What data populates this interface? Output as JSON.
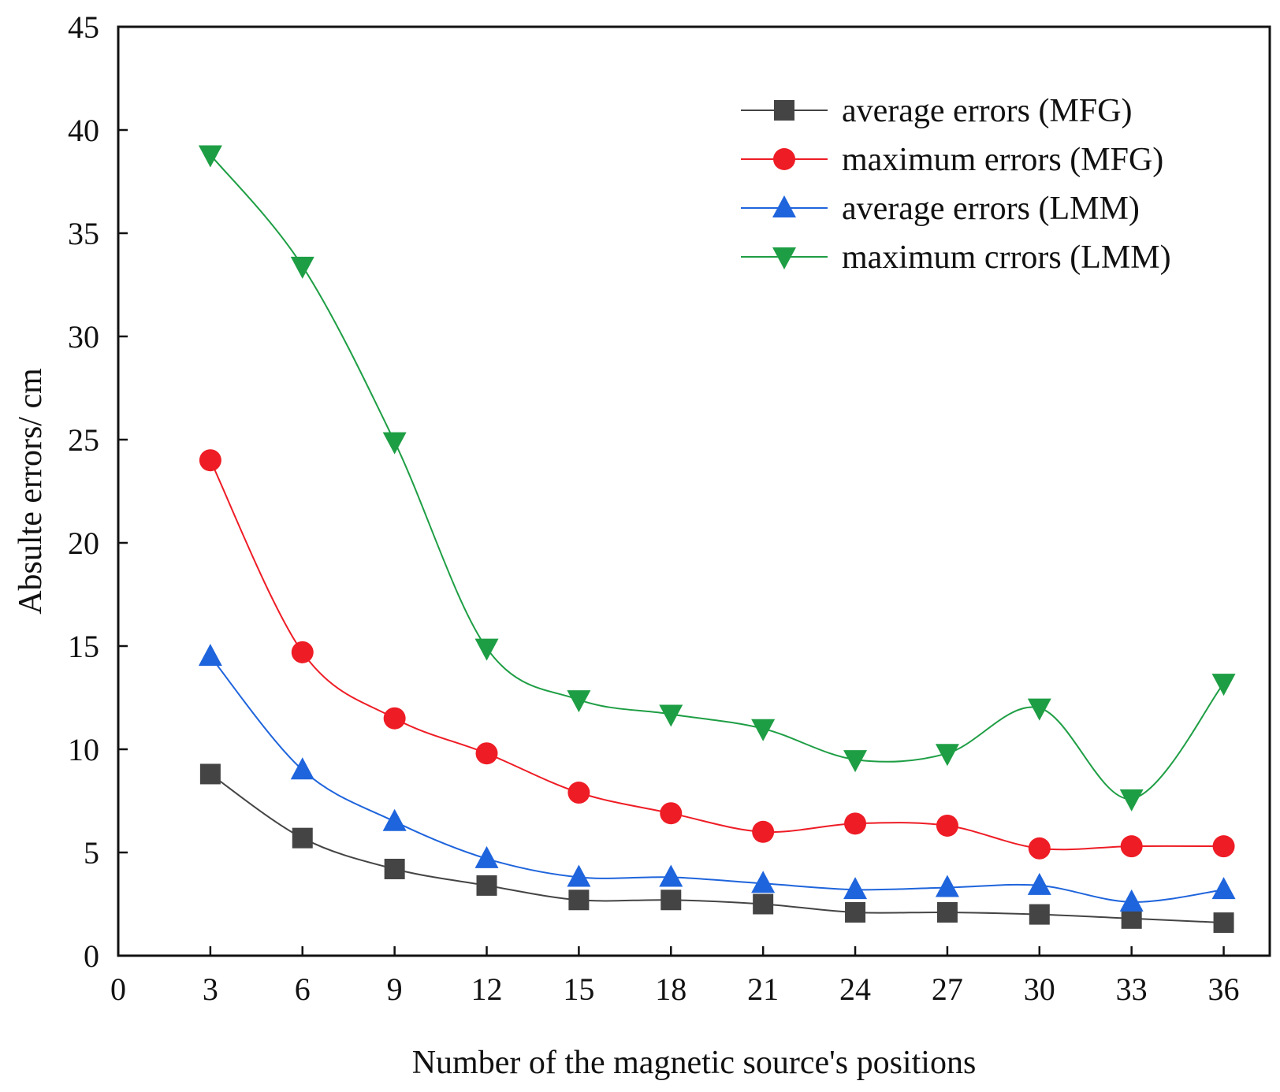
{
  "chart_data": {
    "type": "line",
    "title": "",
    "xlabel": "Number of the magnetic source's positions",
    "ylabel": "Absulte errors/ cm",
    "xlim": [
      0,
      37.5
    ],
    "ylim": [
      0,
      45
    ],
    "xticks": [
      0,
      3,
      6,
      9,
      12,
      15,
      18,
      21,
      24,
      27,
      30,
      33,
      36
    ],
    "yticks": [
      0,
      5,
      10,
      15,
      20,
      25,
      30,
      35,
      40,
      45
    ],
    "x": [
      3,
      6,
      9,
      12,
      15,
      18,
      21,
      24,
      27,
      30,
      33,
      36
    ],
    "grid": false,
    "legend_position": "top-right",
    "series": [
      {
        "name": "average errors (MFG)",
        "marker": "square",
        "color": "#444444",
        "values": [
          8.8,
          5.7,
          4.2,
          3.4,
          2.7,
          2.7,
          2.5,
          2.1,
          2.1,
          2.0,
          1.8,
          1.6
        ]
      },
      {
        "name": "maximum errors (MFG)",
        "marker": "circle",
        "color": "#ee1c25",
        "values": [
          24.0,
          14.7,
          11.5,
          9.8,
          7.9,
          6.9,
          6.0,
          6.4,
          6.3,
          5.2,
          5.3,
          5.3
        ]
      },
      {
        "name": "average errors (LMM)",
        "marker": "triangle-up",
        "color": "#1e64dc",
        "values": [
          14.5,
          9.0,
          6.5,
          4.7,
          3.8,
          3.8,
          3.5,
          3.2,
          3.3,
          3.4,
          2.6,
          3.2
        ]
      },
      {
        "name": "maximum crrors (LMM)",
        "marker": "triangle-down",
        "color": "#1e9e44",
        "values": [
          38.8,
          33.4,
          24.9,
          14.9,
          12.4,
          11.7,
          11.0,
          9.5,
          9.8,
          12.0,
          7.6,
          13.2
        ]
      }
    ]
  }
}
